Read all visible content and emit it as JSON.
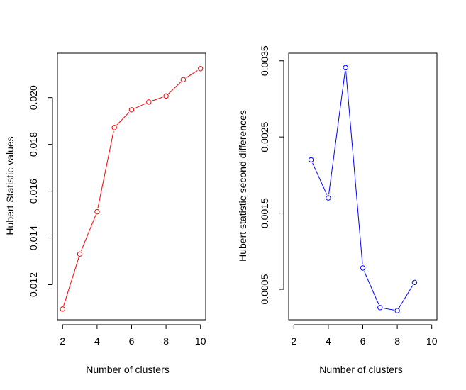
{
  "chart_data": [
    {
      "type": "line",
      "xlabel": "Number of clusters",
      "ylabel": "Hubert Statistic values",
      "xlim": [
        1.7,
        10.3
      ],
      "ylim": [
        0.0105,
        0.0219
      ],
      "x_ticks": [
        2,
        4,
        6,
        8,
        10
      ],
      "x_tick_labels": [
        "2",
        "4",
        "6",
        "8",
        "10"
      ],
      "y_ticks": [
        0.012,
        0.014,
        0.016,
        0.018,
        0.02
      ],
      "y_tick_labels": [
        "0.012",
        "0.014",
        "0.016",
        "0.018",
        "0.020"
      ],
      "color": "#ff0000",
      "grid": false,
      "series": [
        {
          "x": [
            2,
            3,
            4,
            5,
            6,
            7,
            8,
            9,
            10
          ],
          "values": [
            0.01096,
            0.01331,
            0.01512,
            0.01872,
            0.01948,
            0.01981,
            0.02007,
            0.02077,
            0.02124
          ]
        }
      ]
    },
    {
      "type": "line",
      "xlabel": "Number of clusters",
      "ylabel": "Hubert statistic second differences",
      "xlim": [
        1.7,
        10.3
      ],
      "ylim": [
        0.0001,
        0.0036
      ],
      "x_ticks": [
        2,
        4,
        6,
        8,
        10
      ],
      "x_tick_labels": [
        "2",
        "4",
        "6",
        "8",
        "10"
      ],
      "y_ticks": [
        0.0005,
        0.0015,
        0.0025,
        0.0035
      ],
      "y_tick_labels": [
        "0.0005",
        "0.0015",
        "0.0025",
        "0.0035"
      ],
      "color": "#0000ff",
      "grid": false,
      "series": [
        {
          "x": [
            3,
            4,
            5,
            6,
            7,
            8,
            9
          ],
          "values": [
            0.0022,
            0.0017,
            0.00341,
            0.00078,
            0.00026,
            0.00022,
            0.00059
          ]
        }
      ]
    }
  ]
}
